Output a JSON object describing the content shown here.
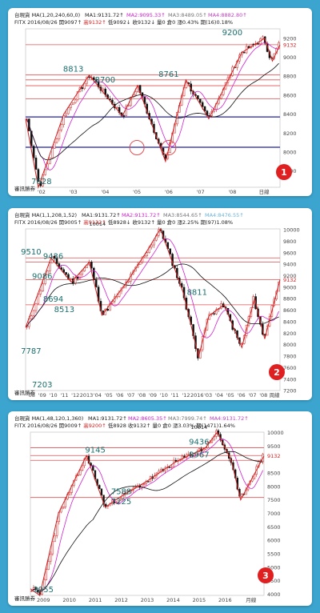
{
  "colors": {
    "background": "#3ba5cf",
    "badge": "#e02020",
    "up": "#d02020",
    "down": "#111111",
    "hline_red": "#e05050",
    "hline_blue": "#2020a0",
    "ma1": "#d020d0",
    "ma2": "#111111",
    "ma3": "#c040c0",
    "annotation": "#1b6f6f"
  },
  "chart_data": [
    {
      "type": "candlestick",
      "badge": "1",
      "header": {
        "ma_params": "台現貨 MA(1,20,240,60,0)",
        "ma1": "MA1:9131.72↑",
        "ma2": "MA2:9095.33↑",
        "ma3": "MA3:8489.05↑",
        "ma4": "MA4:8882.80↑",
        "quote_prefix": "FITX 2016/08/26 開9097↑",
        "high": "高9132↑",
        "low": "低9092↓",
        "close": "收9132↓",
        "volume": "量0 倉0",
        "change": "漲0.43% 期(16)0.18%",
        "counter_label": "審訊勝券"
      },
      "x_labels": [
        "'02",
        "'03",
        "'04",
        "'05",
        "'06",
        "'07",
        "'08",
        "日線"
      ],
      "y_labels": [
        "9200",
        "9132",
        "9000",
        "8800",
        "8600",
        "8400",
        "8200",
        "8000",
        "7800"
      ],
      "ylim": [
        7628,
        9300
      ],
      "hlines_red": [
        9132,
        8813,
        8761,
        8700,
        8560
      ],
      "hlines_blue": [
        8370,
        8050
      ],
      "annotations": [
        {
          "text": "8813",
          "x": "'03",
          "y": 8813
        },
        {
          "text": "8700",
          "x": "'04",
          "y": 8700
        },
        {
          "text": "8761",
          "x": "'06",
          "y": 8761
        },
        {
          "text": "9200",
          "x": "'08",
          "y": 9200
        },
        {
          "text": "7628",
          "x": "'02",
          "y": 7628
        }
      ],
      "circles_at": [
        "'05",
        "'06"
      ]
    },
    {
      "type": "candlestick",
      "badge": "2",
      "header": {
        "ma_params": "台現貨 MA(1,1,208,1,52)",
        "ma1": "MA1:9131.72↑",
        "ma2": "MA2:9131.72↑",
        "ma3": "MA3:8544.65↑",
        "ma4": "MA4:8476.55↑",
        "quote_prefix": "FITX 2016/08/26 開9005↑",
        "high": "高9132↑",
        "low": "低8928↓",
        "close": "收9132↑",
        "volume": "量0 倉0",
        "change": "漲2.25% 期(97)1.08%",
        "counter_label": "審訊勝券"
      },
      "x_labels": [
        "'08",
        "'09",
        "'10",
        "'11",
        "'12",
        "2013",
        "'04",
        "'05",
        "'06",
        "'07",
        "'08",
        "'09",
        "'10",
        "'11",
        "'12",
        "2016",
        "'03",
        "'04",
        "'05",
        "'06",
        "'07",
        "'08",
        "周線"
      ],
      "y_labels": [
        "10000",
        "9800",
        "9600",
        "9400",
        "9200",
        "9132",
        "9000",
        "8800",
        "8600",
        "8400",
        "8200",
        "8000",
        "7800",
        "7600",
        "7400",
        "7200"
      ],
      "ylim": [
        7203,
        10014
      ],
      "hlines_red": [
        9510,
        9436,
        9132,
        8694
      ],
      "annotations": [
        {
          "text": "9510",
          "x": "'08",
          "y": 9510
        },
        {
          "text": "9436",
          "x": "'10",
          "y": 9436
        },
        {
          "text": "9086",
          "x": "'09",
          "y": 9086
        },
        {
          "text": "8513",
          "x": "'11",
          "y": 8513
        },
        {
          "text": "10014",
          "x": "'04",
          "y": 10014
        },
        {
          "text": "8694",
          "x": "'10",
          "y": 8694
        },
        {
          "text": "8811",
          "x": "2016",
          "y": 8811
        },
        {
          "text": "7787",
          "x": "'08",
          "y": 7787
        },
        {
          "text": "7203",
          "x": "'09",
          "y": 7203
        }
      ]
    },
    {
      "type": "candlestick",
      "badge": "3",
      "header": {
        "ma_params": "台現貨 MA(1,48,120,1,360)",
        "ma1": "MA1:9131.72↑",
        "ma2": "MA2:8605.35↑",
        "ma3": "MA3:7999.74↑",
        "ma4": "MA4:9131.72↑",
        "quote_prefix": "FITX 2016/08/26 開9009↑",
        "high": "高9200↑",
        "low": "低8928",
        "close": "收9132↑",
        "volume": "量0 倉0",
        "change": "漲3.03% 期(1471)1.64%",
        "counter_label": "審訊勝券"
      },
      "x_labels": [
        "2009",
        "2010",
        "2011",
        "2012",
        "2013",
        "2014",
        "2015",
        "2016",
        "月線"
      ],
      "y_labels": [
        "10000",
        "9500",
        "9132",
        "8500",
        "8000",
        "7500",
        "7000",
        "6500",
        "6000",
        "5500",
        "5000",
        "4500",
        "4000"
      ],
      "ylim": [
        3955,
        10014
      ],
      "hlines_red": [
        9436,
        9145,
        8967,
        7588
      ],
      "annotations": [
        {
          "text": "9145",
          "x": "2011",
          "y": 9145
        },
        {
          "text": "7588",
          "x": "2012",
          "y": 7588
        },
        {
          "text": "7225",
          "x": "2012",
          "y": 7225
        },
        {
          "text": "9436",
          "x": "2015",
          "y": 9436
        },
        {
          "text": "10014",
          "x": "2015",
          "y": 10014
        },
        {
          "text": "8967",
          "x": "2015",
          "y": 8967
        },
        {
          "text": "3955",
          "x": "2009",
          "y": 3955
        }
      ]
    }
  ]
}
